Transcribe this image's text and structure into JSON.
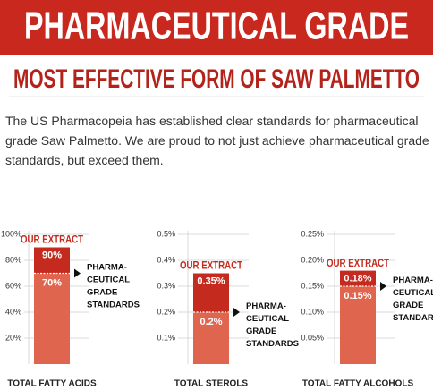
{
  "header": {
    "banner": "PHARMACEUTICAL GRADE",
    "subtitle": "MOST EFFECTIVE FORM OF SAW PALMETTO",
    "paragraph": "The US Pharmacopeia has established clear standards for pharmaceutical grade Saw Palmetto. We are proud to not just achieve pharmaceutical grade standards, but exceed them."
  },
  "chart_data": [
    {
      "type": "bar",
      "categories": [
        "TOTAL FATTY ACIDS"
      ],
      "ylim": [
        0,
        100
      ],
      "yticks": [
        {
          "value": 20,
          "label": "20%"
        },
        {
          "value": 40,
          "label": "40%"
        },
        {
          "value": 60,
          "label": "60%"
        },
        {
          "value": 80,
          "label": "80%"
        },
        {
          "value": 100,
          "label": "100%"
        }
      ],
      "grid": true,
      "series": [
        {
          "name": "OUR EXTRACT",
          "color": "#c42a1d",
          "values": [
            90
          ],
          "value_labels": [
            "90%"
          ]
        },
        {
          "name": "PHARMA-\nCEUTICAL\nGRADE\nSTANDARDS",
          "color": "#e0654f",
          "values": [
            70
          ],
          "value_labels": [
            "70%"
          ]
        }
      ]
    },
    {
      "type": "bar",
      "categories": [
        "TOTAL STEROLS"
      ],
      "ylim": [
        0,
        0.5
      ],
      "yticks": [
        {
          "value": 0.1,
          "label": "0.1%"
        },
        {
          "value": 0.2,
          "label": "0.2%"
        },
        {
          "value": 0.3,
          "label": "0.3%"
        },
        {
          "value": 0.4,
          "label": "0.4%"
        },
        {
          "value": 0.5,
          "label": "0.5%"
        }
      ],
      "grid": true,
      "series": [
        {
          "name": "OUR EXTRACT",
          "color": "#c42a1d",
          "values": [
            0.35
          ],
          "value_labels": [
            "0.35%"
          ]
        },
        {
          "name": "PHARMA-\nCEUTICAL\nGRADE\nSTANDARDS",
          "color": "#e0654f",
          "values": [
            0.2
          ],
          "value_labels": [
            "0.2%"
          ]
        }
      ]
    },
    {
      "type": "bar",
      "categories": [
        "TOTAL FATTY ALCOHOLS"
      ],
      "ylim": [
        0,
        0.25
      ],
      "yticks": [
        {
          "value": 0.05,
          "label": "0.05%"
        },
        {
          "value": 0.1,
          "label": "0.10%"
        },
        {
          "value": 0.15,
          "label": "0.15%"
        },
        {
          "value": 0.2,
          "label": "0.20%"
        },
        {
          "value": 0.25,
          "label": "0.25%"
        }
      ],
      "grid": true,
      "series": [
        {
          "name": "OUR EXTRACT",
          "color": "#c42a1d",
          "values": [
            0.18
          ],
          "value_labels": [
            "0.18%"
          ]
        },
        {
          "name": "PHARMA-\nCEUTICAL\nGRADE\nSTANDARDS",
          "color": "#e0654f",
          "values": [
            0.15
          ],
          "value_labels": [
            "0.15%"
          ]
        }
      ]
    }
  ]
}
